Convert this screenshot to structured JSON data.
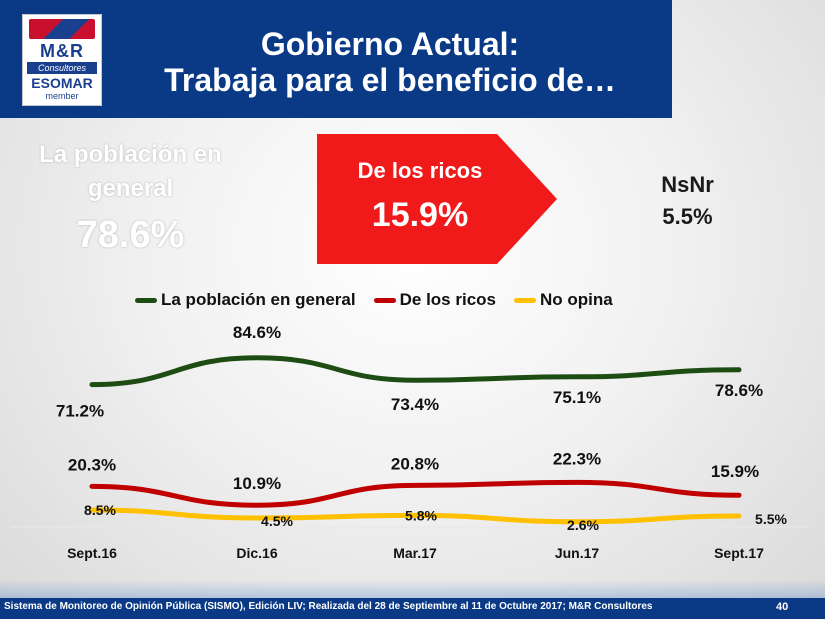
{
  "header": {
    "title_line1": "Gobierno Actual:",
    "title_line2": "Trabaja para el beneficio de…"
  },
  "logo": {
    "brand": "M&R",
    "subtitle": "Consultores",
    "esomar": "ESOMAR",
    "member": "member"
  },
  "highlights": {
    "poblacion_label": "La población en general",
    "poblacion_value": "78.6%",
    "ricos_label": "De los ricos",
    "ricos_value": "15.9%",
    "nsnr_label": "NsNr",
    "nsnr_value": "5.5%"
  },
  "colors": {
    "header_bg": "#0a3a86",
    "poblacion": "#1e4d14",
    "ricos": "#c00000",
    "no_opina": "#ffc000",
    "arrow": "#f01a1a"
  },
  "chart_data": {
    "type": "line",
    "categories": [
      "Sept.16",
      "Dic.16",
      "Mar.17",
      "Jun.17",
      "Sept.17"
    ],
    "series": [
      {
        "name": "La población en general",
        "values": [
          71.2,
          84.6,
          73.4,
          75.1,
          78.6
        ],
        "labels": [
          "71.2%",
          "84.6%",
          "73.4%",
          "75.1%",
          "78.6%"
        ]
      },
      {
        "name": "De los ricos",
        "values": [
          20.3,
          10.9,
          20.8,
          22.3,
          15.9
        ],
        "labels": [
          "20.3%",
          "10.9%",
          "20.8%",
          "22.3%",
          "15.9%"
        ]
      },
      {
        "name": "No opina",
        "values": [
          8.5,
          4.5,
          5.8,
          2.6,
          5.5
        ],
        "labels": [
          "8.5%",
          "4.5%",
          "5.8%",
          "2.6%",
          "5.5%"
        ]
      }
    ],
    "legend_position": "top",
    "grid": false
  },
  "footer": {
    "text": "Sistema de Monitoreo de Opinión Pública (SISMO), Edición LIV; Realizada del 28 de Septiembre al 11 de Octubre 2017; M&R Consultores",
    "page": "40"
  }
}
